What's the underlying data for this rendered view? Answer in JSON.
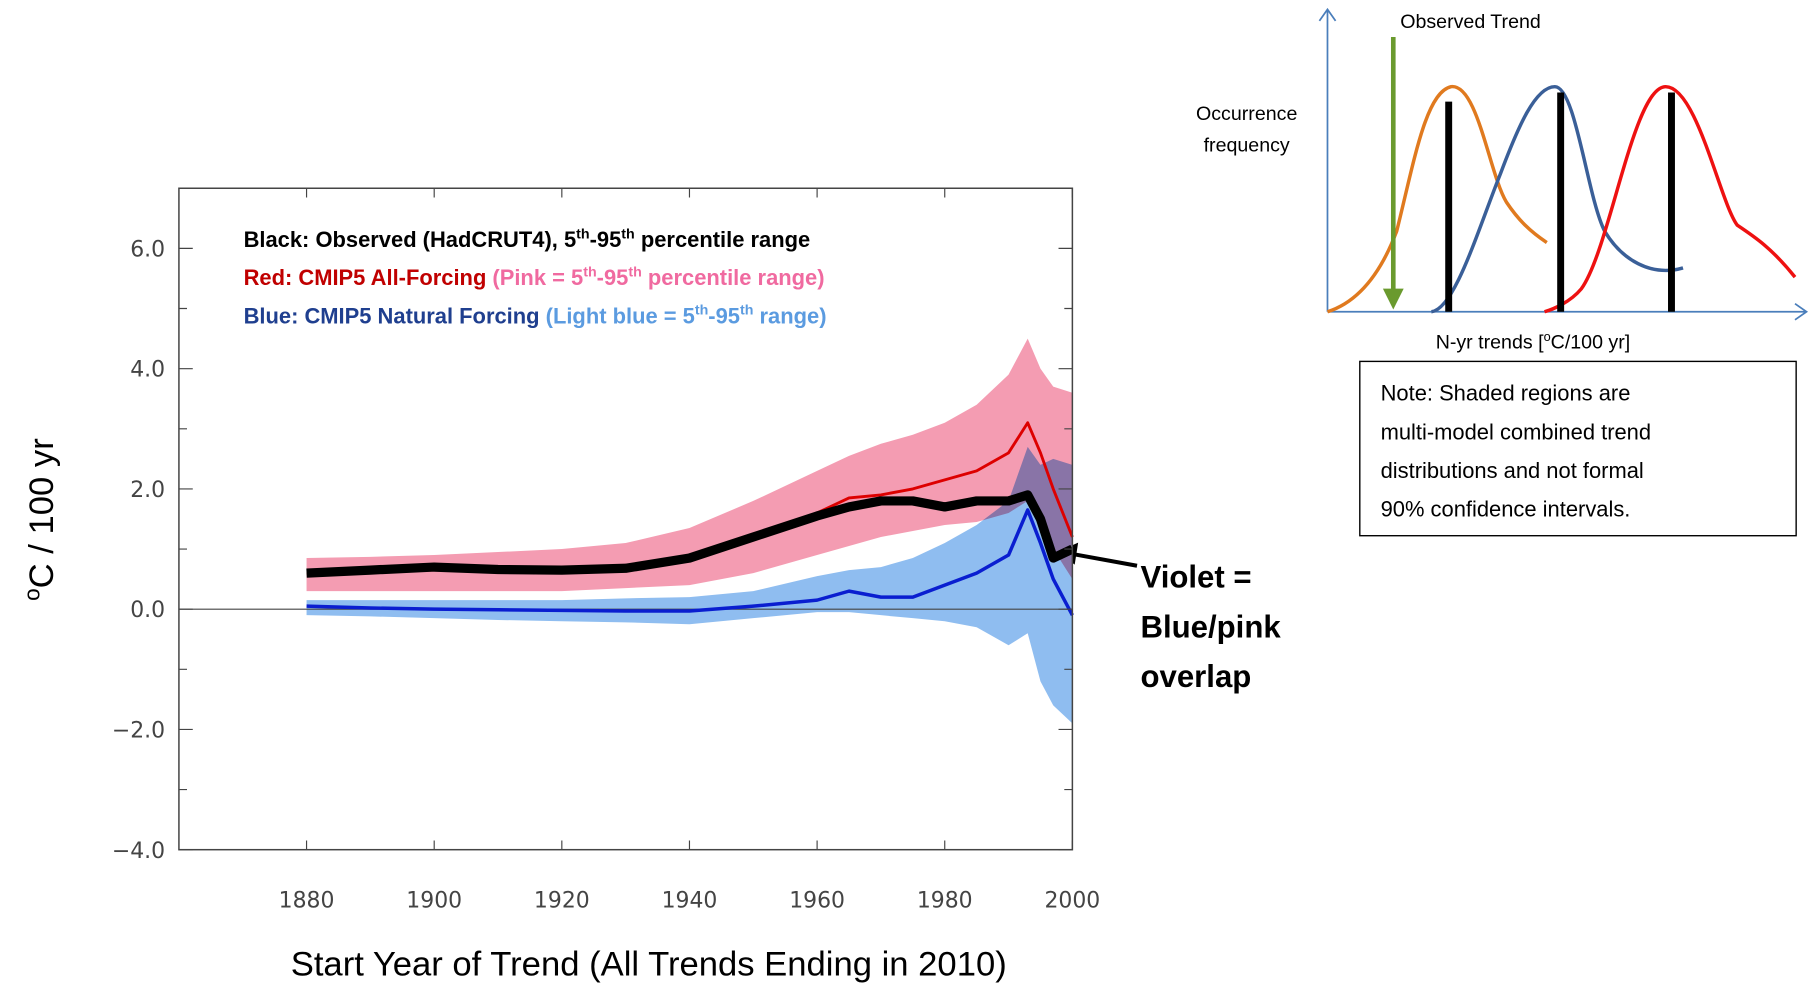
{
  "chart_data": {
    "type": "line",
    "x": [
      1880,
      1890,
      1900,
      1910,
      1920,
      1930,
      1940,
      1950,
      1960,
      1965,
      1970,
      1975,
      1980,
      1985,
      1990,
      1993,
      1995,
      1997,
      2000
    ],
    "series": [
      {
        "color": "#000000",
        "width": 8,
        "values": [
          0.6,
          0.65,
          0.7,
          0.66,
          0.65,
          0.68,
          0.85,
          1.2,
          1.55,
          1.7,
          1.8,
          1.8,
          1.7,
          1.8,
          1.8,
          1.9,
          1.5,
          0.85,
          1.0
        ]
      },
      {
        "color": "#dd0000",
        "width": 2.5,
        "values": [
          0.6,
          0.63,
          0.65,
          0.65,
          0.65,
          0.7,
          0.85,
          1.2,
          1.6,
          1.85,
          1.9,
          2.0,
          2.15,
          2.3,
          2.6,
          3.1,
          2.6,
          2.0,
          1.2
        ]
      },
      {
        "color": "#0a1ed0",
        "width": 3,
        "values": [
          0.05,
          0.02,
          0.0,
          -0.01,
          -0.02,
          -0.03,
          -0.03,
          0.05,
          0.15,
          0.3,
          0.2,
          0.2,
          0.4,
          0.6,
          0.9,
          1.65,
          1.1,
          0.5,
          -0.1
        ]
      }
    ],
    "bands": [
      {
        "color": "#f49cb2",
        "lower": [
          0.3,
          0.3,
          0.3,
          0.3,
          0.3,
          0.35,
          0.4,
          0.6,
          0.9,
          1.05,
          1.2,
          1.3,
          1.4,
          1.45,
          1.6,
          1.8,
          1.4,
          1.0,
          0.5
        ],
        "upper": [
          0.85,
          0.87,
          0.9,
          0.95,
          1.0,
          1.1,
          1.35,
          1.8,
          2.3,
          2.55,
          2.75,
          2.9,
          3.1,
          3.4,
          3.9,
          4.5,
          4.0,
          3.7,
          3.6
        ]
      },
      {
        "color": "#8fbdf0",
        "lower": [
          -0.1,
          -0.12,
          -0.15,
          -0.18,
          -0.2,
          -0.22,
          -0.25,
          -0.15,
          -0.05,
          -0.05,
          -0.1,
          -0.15,
          -0.2,
          -0.3,
          -0.6,
          -0.4,
          -1.2,
          -1.6,
          -1.9
        ],
        "upper": [
          0.15,
          0.15,
          0.15,
          0.15,
          0.15,
          0.18,
          0.2,
          0.3,
          0.55,
          0.65,
          0.7,
          0.85,
          1.1,
          1.4,
          1.8,
          2.7,
          2.4,
          2.5,
          2.4
        ]
      }
    ],
    "xlim": [
      1860,
      2000
    ],
    "ylim": [
      -4,
      7
    ],
    "xticks": [
      1880,
      1900,
      1920,
      1940,
      1960,
      1980,
      2000
    ],
    "yticks": [
      {
        "value": -4,
        "label": "−4.0"
      },
      {
        "value": -2,
        "label": "−2.0"
      },
      {
        "value": 0,
        "label": "0.0"
      },
      {
        "value": 2,
        "label": "2.0"
      },
      {
        "value": 4,
        "label": "4.0"
      },
      {
        "value": 6,
        "label": "6.0"
      }
    ],
    "yminorticks": [
      -3,
      -1,
      1,
      3,
      5
    ],
    "zero_line": true,
    "legend": [
      [
        {
          "text": "Black:  Observed (HadCRUT4), 5",
          "color": "#000000"
        },
        {
          "text": "th",
          "color": "#000000",
          "sup": true
        },
        {
          "text": "-95",
          "color": "#000000"
        },
        {
          "text": "th",
          "color": "#000000",
          "sup": true
        },
        {
          "text": " percentile range",
          "color": "#000000"
        }
      ],
      [
        {
          "text": "Red:  CMIP5 All-Forcing   ",
          "color": "#c00000"
        },
        {
          "text": "(Pink = 5",
          "color": "#f06aa0"
        },
        {
          "text": "th",
          "color": "#f06aa0",
          "sup": true
        },
        {
          "text": "-95",
          "color": "#f06aa0"
        },
        {
          "text": "th",
          "color": "#f06aa0",
          "sup": true
        },
        {
          "text": " percentile range)",
          "color": "#f06aa0"
        }
      ],
      [
        {
          "text": "Blue:  CMIP5 Natural Forcing   ",
          "color": "#1f3f8f"
        },
        {
          "text": "(Light blue = 5",
          "color": "#5b9be0"
        },
        {
          "text": "th",
          "color": "#5b9be0",
          "sup": true
        },
        {
          "text": "-95",
          "color": "#5b9be0"
        },
        {
          "text": "th",
          "color": "#5b9be0",
          "sup": true
        },
        {
          "text": " range)",
          "color": "#5b9be0"
        }
      ]
    ],
    "ylabel": [
      {
        "text": "o",
        "sup": true
      },
      {
        "text": "C / 100 yr"
      }
    ],
    "xlabel": "Start Year of Trend (All Trends Ending in 2010)",
    "annotation": [
      "Violet =",
      "Blue/pink",
      "overlap"
    ]
  },
  "inset": {
    "top_label": "Observed Trend",
    "y_label": [
      "Occurrence",
      "frequency"
    ],
    "x_label": [
      {
        "text": "N-yr trends ["
      },
      {
        "text": "o",
        "sup": true
      },
      {
        "text": "C/100 yr]"
      }
    ],
    "note": [
      "Note:  Shaded regions are",
      "multi-model combined trend",
      "distributions and not formal",
      "90% confidence intervals."
    ]
  }
}
